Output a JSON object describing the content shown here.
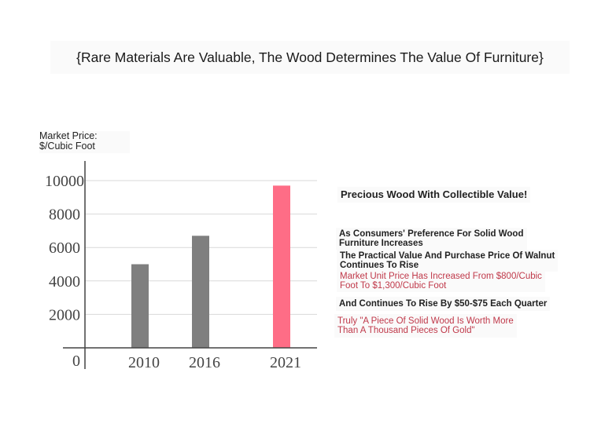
{
  "title": "{Rare Materials Are Valuable, The Wood Determines The Value Of Furniture}",
  "chart_data": {
    "type": "bar",
    "ylabel_lines": [
      "Market Price:",
      "$/Cubic Foot"
    ],
    "categories": [
      "2010",
      "2016",
      "2021"
    ],
    "values": [
      5000,
      6700,
      9700
    ],
    "bar_colors": [
      "#7f7f7f",
      "#7f7f7f",
      "#fe6d86"
    ],
    "ylim": [
      0,
      10000
    ],
    "yticks": [
      0,
      2000,
      4000,
      6000,
      8000,
      10000
    ],
    "grid": true
  },
  "annotations": {
    "heading": "Precious Wood With Collectible Value!",
    "line1": [
      "As Consumers' Preference For Solid Wood",
      "Furniture Increases"
    ],
    "line2": [
      "The Practical Value And Purchase Price Of Walnut",
      "Continues To Rise"
    ],
    "line3": [
      "Market Unit Price Has Increased From $800/Cubic",
      "Foot To $1,300/Cubic Foot"
    ],
    "line4": "And Continues To Rise By $50-$75 Each Quarter",
    "line5": [
      "Truly \"A Piece Of Solid Wood Is Worth More",
      "Than A Thousand Pieces Of Gold\""
    ]
  }
}
